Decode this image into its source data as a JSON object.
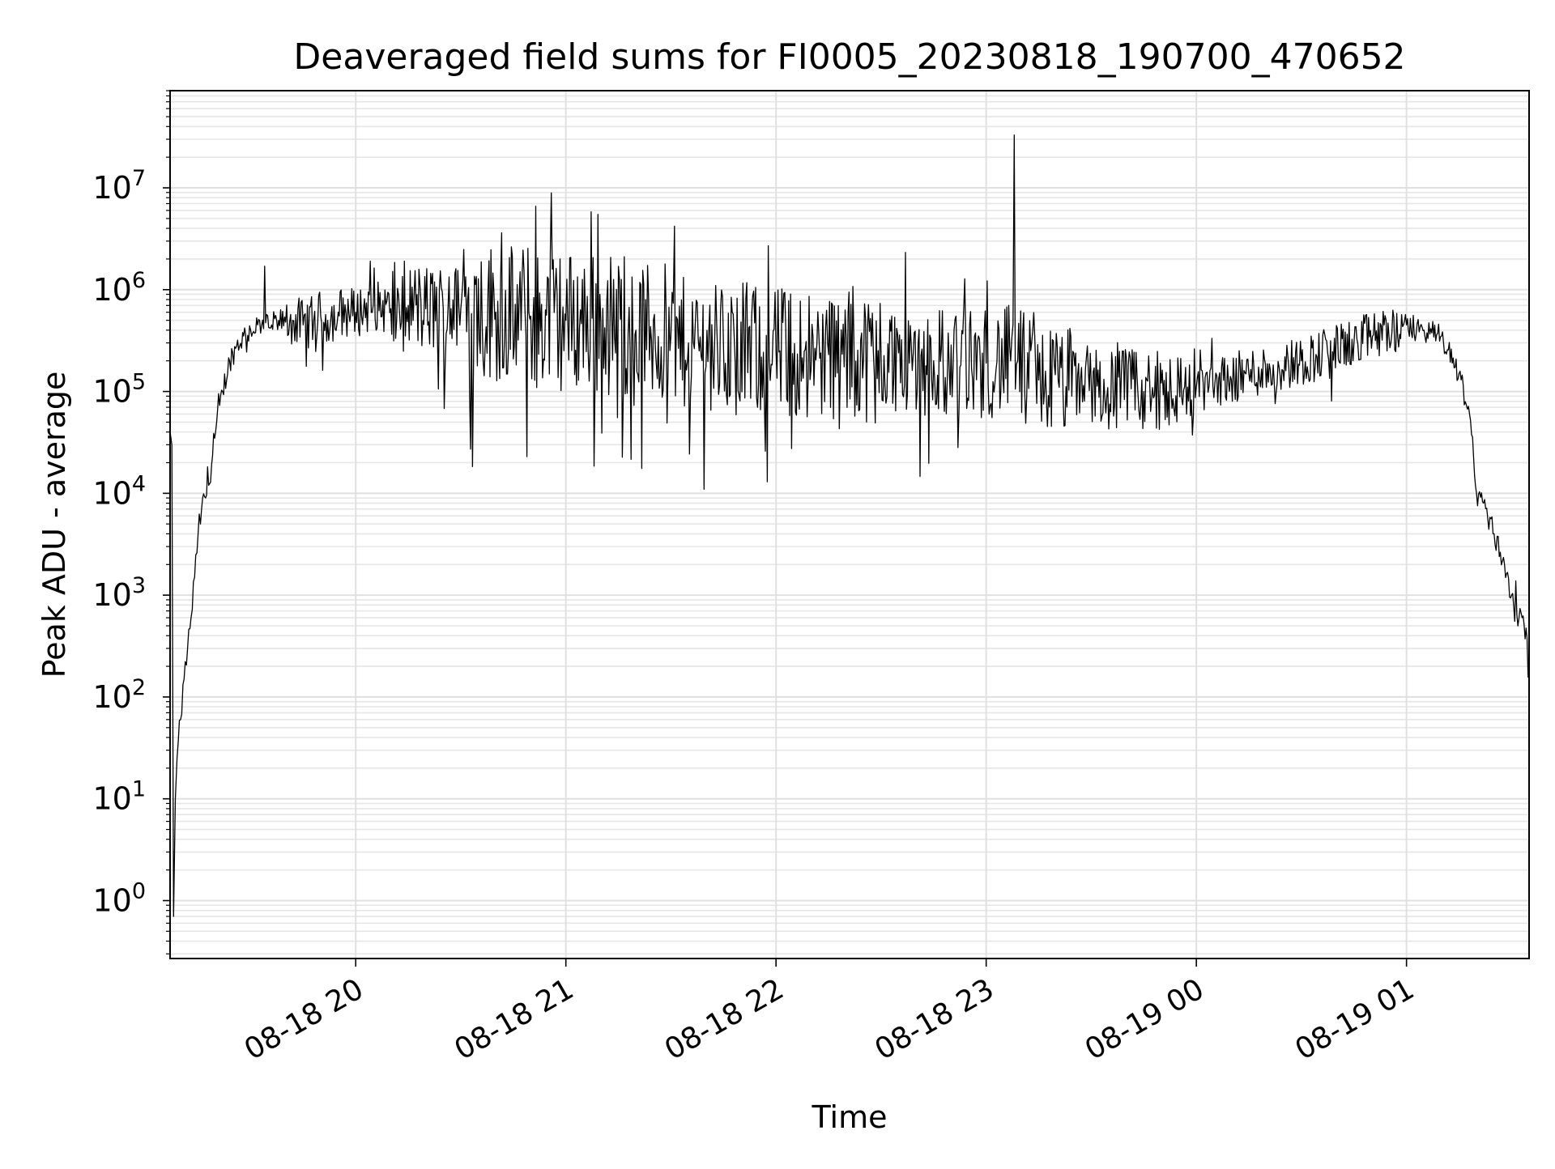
{
  "chart_data": {
    "type": "line",
    "title": "Deaveraged field sums for FI0005_20230818_190700_470652",
    "xlabel": "Time",
    "ylabel": "Peak ADU - average",
    "yscale": "log",
    "ylim": [
      0.27,
      90000000
    ],
    "xlim": [
      "2023-08-18 19:07",
      "2023-08-19 01:35"
    ],
    "grid": true,
    "line_color": "#000000",
    "xticks": [
      "08-18 20",
      "08-18 21",
      "08-18 22",
      "08-18 23",
      "08-19 00",
      "08-19 01"
    ],
    "yticks": [
      {
        "base": "10",
        "exp": "0"
      },
      {
        "base": "10",
        "exp": "1"
      },
      {
        "base": "10",
        "exp": "2"
      },
      {
        "base": "10",
        "exp": "3"
      },
      {
        "base": "10",
        "exp": "4"
      },
      {
        "base": "10",
        "exp": "5"
      },
      {
        "base": "10",
        "exp": "6"
      },
      {
        "base": "10",
        "exp": "7"
      }
    ],
    "series": [
      {
        "x": [
          "19:07",
          "19:07:30",
          "19:08",
          "19:08:30",
          "19:09",
          "19:10",
          "19:11",
          "19:12",
          "19:13",
          "19:14",
          "19:15",
          "19:16",
          "19:18",
          "19:20",
          "19:22",
          "19:24",
          "19:26",
          "19:28",
          "19:30",
          "19:32",
          "19:34",
          "19:36",
          "19:38",
          "19:40",
          "19:42",
          "19:45",
          "19:48",
          "19:50",
          "19:52",
          "19:55",
          "20:00",
          "20:05",
          "20:10",
          "20:15",
          "20:20",
          "20:25",
          "20:30",
          "20:40",
          "20:50",
          "21:00",
          "21:10",
          "21:20",
          "21:30",
          "21:31",
          "21:35",
          "21:45",
          "22:00",
          "22:15",
          "22:30",
          "22:45",
          "23:00",
          "23:07",
          "23:08",
          "23:09",
          "23:15",
          "23:30",
          "23:45",
          "00:00",
          "00:15",
          "00:30",
          "00:45",
          "01:00",
          "01:05",
          "01:10",
          "01:15",
          "01:18",
          "01:20",
          "01:22",
          "01:25",
          "01:28",
          "01:30",
          "01:33",
          "01:35"
        ],
        "y": [
          40000,
          30000,
          0.7,
          10,
          25,
          60,
          150,
          300,
          600,
          1500,
          4000,
          7000,
          12000,
          40000,
          100000,
          200000,
          280000,
          350000,
          400000,
          450000,
          1700000,
          450000,
          500000,
          480000,
          500000,
          450000,
          500000,
          550000,
          500000,
          600000,
          600000,
          700000,
          650000,
          700000,
          650000,
          650000,
          650000,
          600000,
          550000,
          500000,
          480000,
          400000,
          350000,
          4200000,
          300000,
          280000,
          250000,
          230000,
          220000,
          200000,
          190000,
          200000,
          33000000,
          200000,
          130000,
          120000,
          100000,
          110000,
          150000,
          200000,
          300000,
          450000,
          400000,
          350000,
          150000,
          60000,
          10000,
          8000,
          4000,
          2000,
          1000,
          600,
          250
        ]
      }
    ]
  }
}
